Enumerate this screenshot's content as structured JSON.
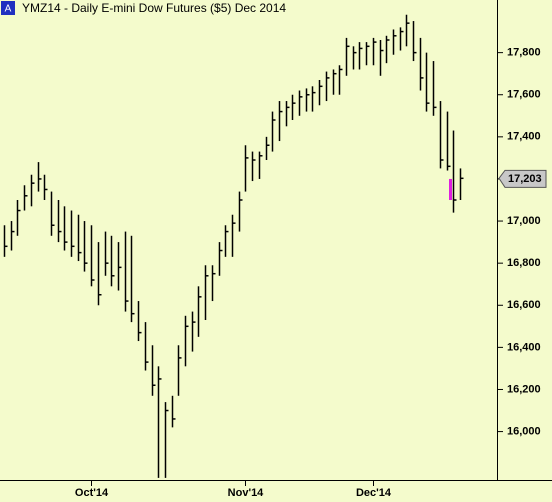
{
  "chart_data": {
    "type": "ohlc",
    "badge": "A",
    "title": "YMZ14 - Daily  E-mini Dow Futures ($5) Dec 2014",
    "color": "#000000",
    "categories": [
      null,
      null,
      null,
      null,
      null,
      null,
      null,
      null,
      null,
      null,
      null,
      null,
      null,
      "Oct'14",
      null,
      null,
      null,
      null,
      null,
      null,
      null,
      null,
      null,
      null,
      null,
      null,
      null,
      null,
      null,
      null,
      null,
      null,
      null,
      null,
      null,
      null,
      "Nov'14",
      null,
      null,
      null,
      null,
      null,
      null,
      null,
      null,
      null,
      null,
      null,
      null,
      null,
      null,
      null,
      null,
      null,
      null,
      "Dec'14",
      null,
      null,
      null,
      null,
      null,
      null,
      null,
      null,
      null,
      null,
      null,
      null,
      null
    ],
    "high": [
      16980,
      17000,
      17100,
      17170,
      17220,
      17280,
      17220,
      17140,
      17100,
      17070,
      17050,
      17030,
      17000,
      16980,
      16900,
      16950,
      16930,
      16900,
      16950,
      16930,
      16620,
      16520,
      16410,
      16310,
      16140,
      16170,
      16410,
      16550,
      16570,
      16690,
      16790,
      16790,
      16900,
      16980,
      17030,
      17140,
      17360,
      17330,
      17330,
      17400,
      17520,
      17570,
      17570,
      17600,
      17620,
      17630,
      17640,
      17670,
      17710,
      17720,
      17740,
      17870,
      17830,
      17850,
      17850,
      17870,
      17860,
      17880,
      17910,
      17920,
      17980,
      17950,
      17870,
      17800,
      17760,
      17570,
      17520,
      17430,
      17250
    ],
    "low": [
      16830,
      16860,
      16930,
      17050,
      17070,
      17140,
      17100,
      16930,
      16900,
      16860,
      16830,
      16810,
      16760,
      16690,
      16600,
      16740,
      16690,
      16670,
      16570,
      16520,
      16430,
      16290,
      16170,
      15780,
      15780,
      16020,
      16170,
      16310,
      16380,
      16450,
      16530,
      16620,
      16740,
      16830,
      16830,
      16950,
      17140,
      17190,
      17200,
      17290,
      17330,
      17380,
      17450,
      17480,
      17500,
      17520,
      17520,
      17550,
      17570,
      17600,
      17600,
      17690,
      17720,
      17720,
      17740,
      17740,
      17690,
      17750,
      17790,
      17810,
      17830,
      17760,
      17620,
      17520,
      17500,
      17250,
      17240,
      17040,
      17100
    ],
    "close": [
      16880,
      16950,
      17050,
      17120,
      17180,
      17200,
      17150,
      16980,
      16950,
      16900,
      16880,
      16850,
      16800,
      16720,
      16650,
      16800,
      16740,
      16780,
      16620,
      16560,
      16470,
      16330,
      16220,
      16250,
      16100,
      16060,
      16350,
      16500,
      16520,
      16640,
      16740,
      16750,
      16860,
      16950,
      16990,
      17100,
      17300,
      17290,
      17310,
      17360,
      17480,
      17520,
      17540,
      17560,
      17590,
      17600,
      17610,
      17640,
      17680,
      17700,
      17720,
      17830,
      17800,
      17820,
      17830,
      17850,
      17810,
      17860,
      17880,
      17900,
      17940,
      17800,
      17680,
      17560,
      17540,
      17290,
      17260,
      17100,
      17203
    ],
    "marker": {
      "color": "#e020e0",
      "high": 17200,
      "low": 17100
    },
    "last": {
      "value": 17203,
      "label": "17,203"
    },
    "ylim": [
      15770,
      18050
    ],
    "yticks": [
      {
        "value": 16000,
        "label": "16,000"
      },
      {
        "value": 16200,
        "label": "16,200"
      },
      {
        "value": 16400,
        "label": "16,400"
      },
      {
        "value": 16600,
        "label": "16,600"
      },
      {
        "value": 16800,
        "label": "16,800"
      },
      {
        "value": 17000,
        "label": "17,000"
      },
      {
        "value": 17200,
        "label": "17,200"
      },
      {
        "value": 17400,
        "label": "17,400"
      },
      {
        "value": 17600,
        "label": "17,600"
      },
      {
        "value": 17800,
        "label": "17,800"
      }
    ]
  }
}
